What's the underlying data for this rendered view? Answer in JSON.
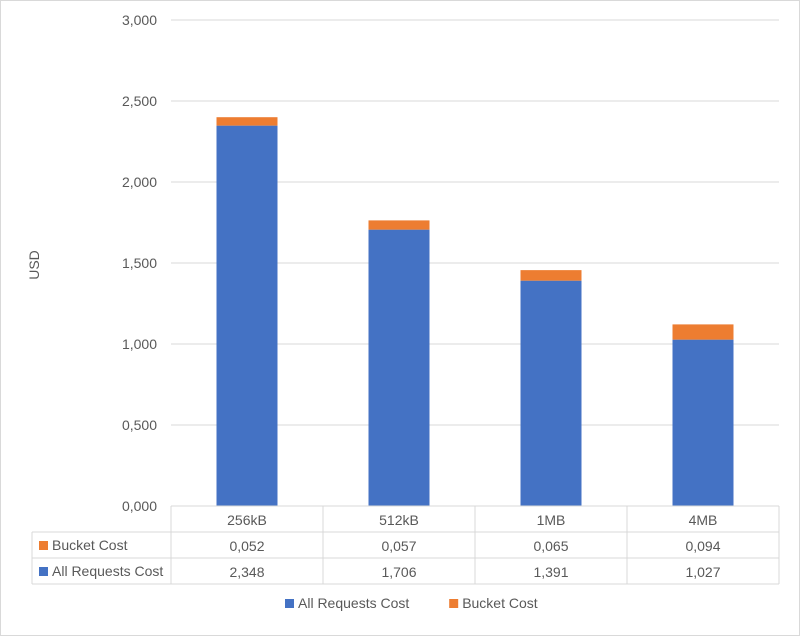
{
  "chart_data": {
    "type": "bar",
    "stacked": true,
    "categories": [
      "256kB",
      "512kB",
      "1MB",
      "4MB"
    ],
    "series": [
      {
        "name": "All Requests Cost",
        "values": [
          2.348,
          1.706,
          1.391,
          1.027
        ],
        "labels": [
          "2,348",
          "1,706",
          "1,391",
          "1,027"
        ],
        "color": "#4472c4"
      },
      {
        "name": "Bucket Cost",
        "values": [
          0.052,
          0.057,
          0.065,
          0.094
        ],
        "labels": [
          "0,052",
          "0,057",
          "0,065",
          "0,094"
        ],
        "color": "#ed7d31"
      }
    ],
    "table_order": [
      1,
      0
    ],
    "ylabel": "USD",
    "ylim": [
      0,
      3
    ],
    "yticks": [
      0,
      0.5,
      1,
      1.5,
      2,
      2.5,
      3
    ],
    "ytick_labels": [
      "0,000",
      "0,500",
      "1,000",
      "1,500",
      "2,000",
      "2,500",
      "3,000"
    ],
    "grid": true,
    "legend": "bottom",
    "data_table": true
  }
}
